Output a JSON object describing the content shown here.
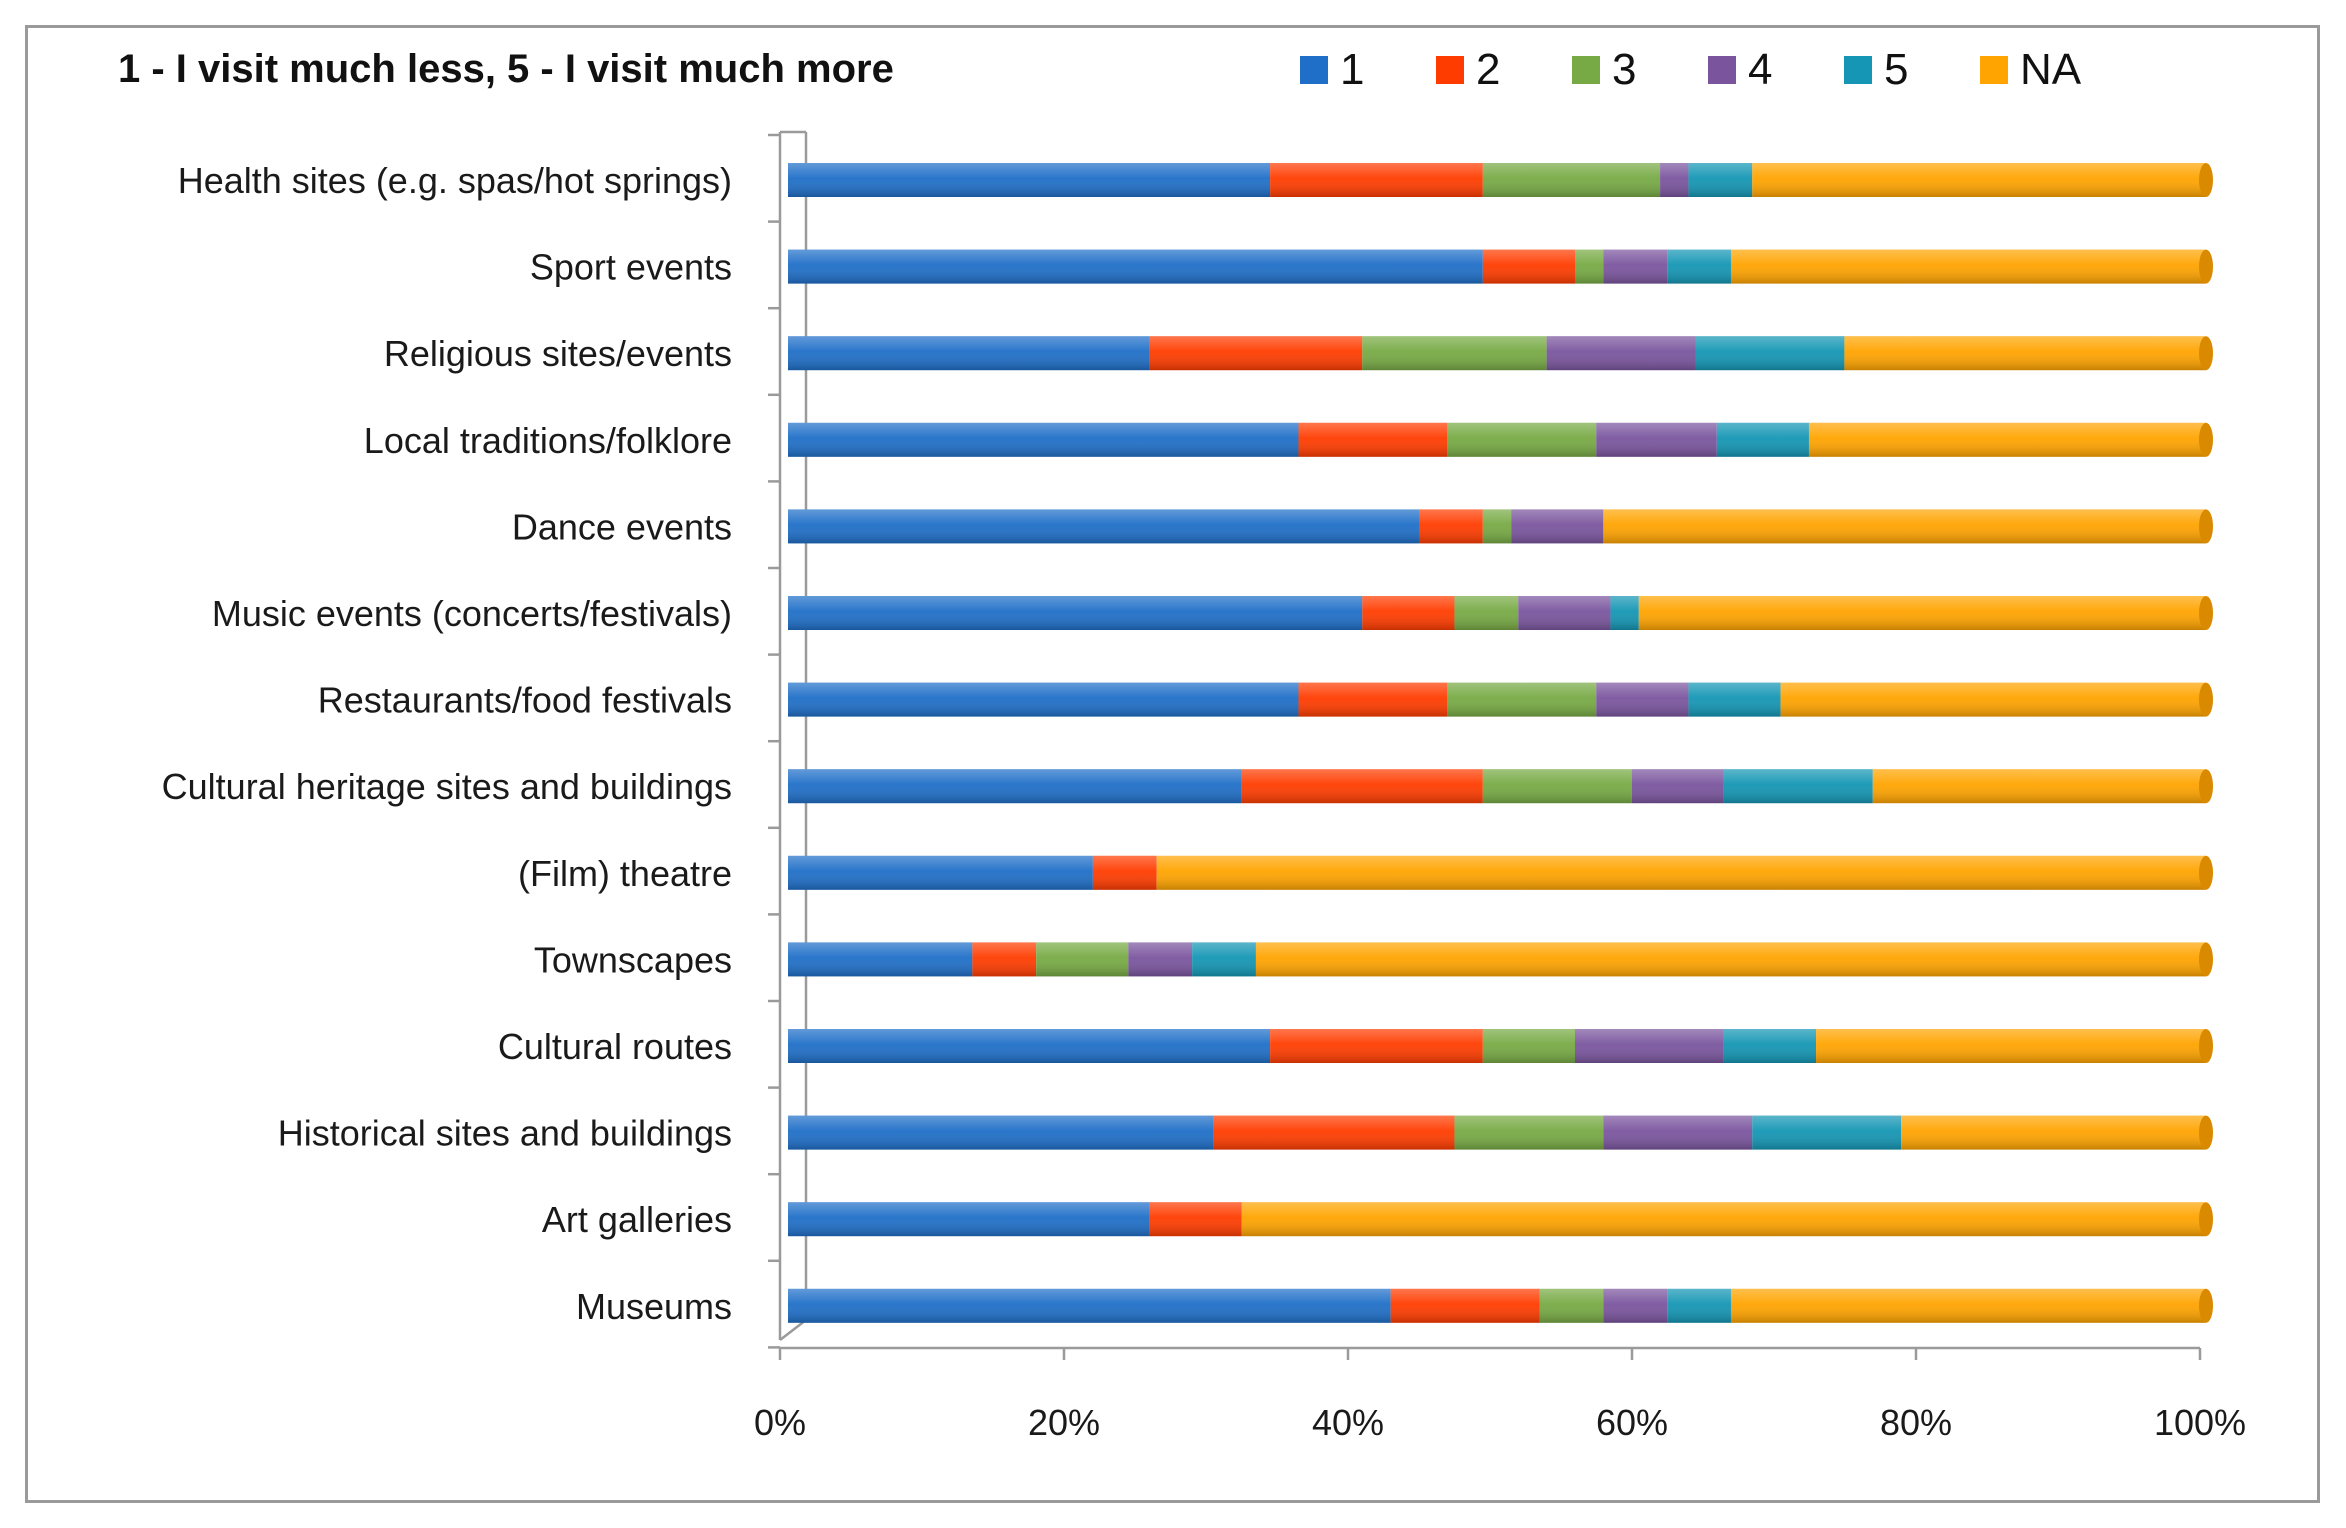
{
  "chart_data": {
    "type": "bar",
    "orientation": "horizontal",
    "stacked": "percent",
    "title": "1 - I visit much less, 5 - I visit much more",
    "xlabel": "",
    "ylabel": "",
    "xlim": [
      0,
      100
    ],
    "x_ticks": [
      "0%",
      "20%",
      "40%",
      "60%",
      "80%",
      "100%"
    ],
    "legend_position": "top-right",
    "grid": false,
    "categories": [
      "Health sites (e.g. spas/hot springs)",
      "Sport events",
      "Religious sites/events",
      "Local traditions/folklore",
      "Dance events",
      "Music events (concerts/festivals)",
      "Restaurants/food festivals",
      "Cultural heritage sites and buildings",
      "(Film) theatre",
      "Townscapes",
      "Cultural routes",
      "Historical sites and buildings",
      "Art galleries",
      "Museums"
    ],
    "series": [
      {
        "name": "1",
        "color": "#1f6fc8",
        "values": [
          34,
          49,
          25.5,
          36,
          44.5,
          40.5,
          36,
          32,
          21.5,
          13,
          34,
          30,
          25.5,
          42.5
        ]
      },
      {
        "name": "2",
        "color": "#ff3c00",
        "values": [
          15,
          6.5,
          15,
          10.5,
          4.5,
          6.5,
          10.5,
          17,
          4.5,
          4.5,
          15,
          17,
          6.5,
          10.5
        ]
      },
      {
        "name": "3",
        "color": "#77aa44",
        "values": [
          12.5,
          2,
          13,
          10.5,
          2,
          4.5,
          10.5,
          10.5,
          0,
          6.5,
          6.5,
          10.5,
          0,
          4.5
        ]
      },
      {
        "name": "4",
        "color": "#7a559e",
        "values": [
          2,
          4.5,
          10.5,
          8.5,
          6.5,
          6.5,
          6.5,
          6.5,
          0,
          4.5,
          10.5,
          10.5,
          0,
          4.5
        ]
      },
      {
        "name": "5",
        "color": "#1496b4",
        "values": [
          4.5,
          4.5,
          10.5,
          6.5,
          0,
          2,
          6.5,
          10.5,
          0,
          4.5,
          6.5,
          10.5,
          0,
          4.5
        ]
      },
      {
        "name": "NA",
        "color": "#ffa400",
        "values": [
          32,
          33.5,
          25.5,
          28,
          42.5,
          40,
          30,
          23.5,
          74,
          67,
          27.5,
          21.5,
          68,
          33.5
        ]
      }
    ]
  }
}
